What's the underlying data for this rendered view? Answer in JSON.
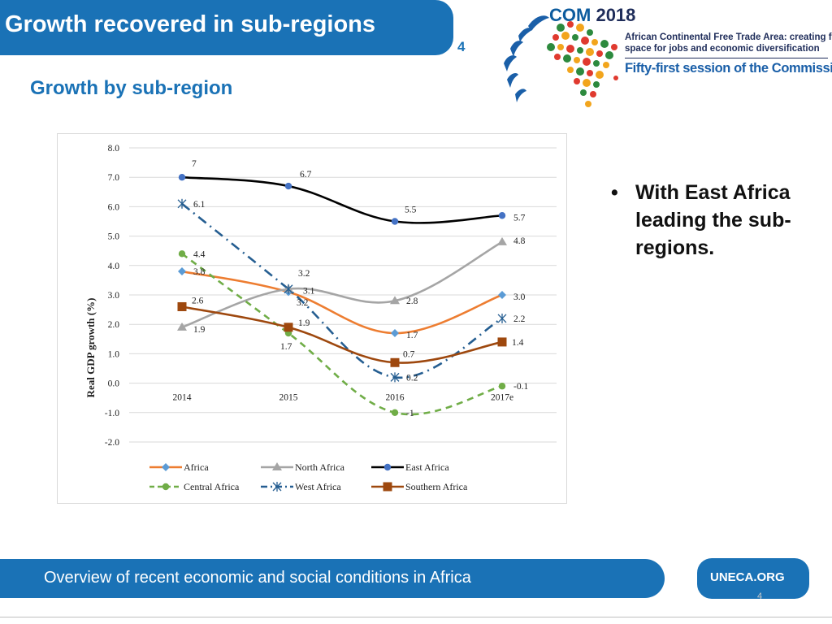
{
  "header": {
    "title": "Growth recovered in sub-regions",
    "slide_number": "4"
  },
  "subtitle": "Growth by sub-region",
  "logo": {
    "name": "COM",
    "year": "2018",
    "line1": "African Continental Free Trade Area: creating fiscal",
    "line2": "space for jobs and economic diversification",
    "line3": "Fifty-first session of the Commission"
  },
  "bullet": {
    "text": "With East Africa leading the sub-regions."
  },
  "footer": {
    "text": "Overview of recent economic and social conditions in Africa",
    "url": "UNECA.ORG",
    "page": "4"
  },
  "colors": {
    "primary": "#1a72b6"
  },
  "chart_data": {
    "type": "line",
    "title": "",
    "xlabel": "",
    "ylabel": "Real GDP growth (%)",
    "ylim": [
      -2,
      8
    ],
    "yticks": [
      "-2.0",
      "-1.0",
      "0.0",
      "1.0",
      "2.0",
      "3.0",
      "4.0",
      "5.0",
      "6.0",
      "7.0",
      "8.0"
    ],
    "categories": [
      "2014",
      "2015",
      "2016",
      "2017e"
    ],
    "legend_position": "bottom",
    "series": [
      {
        "name": "Africa",
        "values": [
          3.8,
          3.1,
          1.7,
          3.0
        ],
        "labels": [
          "3.8",
          "3.1",
          "1.7",
          "3.0"
        ],
        "color": "#ed7d31",
        "marker": "diamond",
        "dash": "solid",
        "marker_color": "#5b9bd5"
      },
      {
        "name": "North Africa",
        "values": [
          1.9,
          3.2,
          2.8,
          4.8
        ],
        "labels": [
          "1.9",
          "3.2",
          "2.8",
          "4.8"
        ],
        "color": "#a5a5a5",
        "marker": "triangle",
        "dash": "solid",
        "marker_color": "#a5a5a5"
      },
      {
        "name": "East Africa",
        "values": [
          7.0,
          6.7,
          5.5,
          5.7
        ],
        "labels": [
          "7",
          "6.7",
          "5.5",
          "5.7"
        ],
        "color": "#000000",
        "marker": "circle",
        "dash": "solid",
        "marker_color": "#4472c4"
      },
      {
        "name": "Central Africa",
        "values": [
          4.4,
          1.7,
          -1.0,
          -0.1
        ],
        "labels": [
          "4.4",
          "1.7",
          "-1",
          "-0.1"
        ],
        "color": "#70ad47",
        "marker": "circle",
        "dash": "dash",
        "marker_color": "#70ad47"
      },
      {
        "name": "West Africa",
        "values": [
          6.1,
          3.2,
          0.2,
          2.2
        ],
        "labels": [
          "6.1",
          "3.2",
          "0.2",
          "2.2"
        ],
        "color": "#255e91",
        "marker": "star",
        "dash": "dashdot",
        "marker_color": "#255e91"
      },
      {
        "name": "Southern Africa",
        "values": [
          2.6,
          1.9,
          0.7,
          1.4
        ],
        "labels": [
          "2.6",
          "1.9",
          "0.7",
          "1.4"
        ],
        "color": "#9e480e",
        "marker": "square",
        "dash": "solid",
        "marker_color": "#9e480e"
      }
    ]
  }
}
